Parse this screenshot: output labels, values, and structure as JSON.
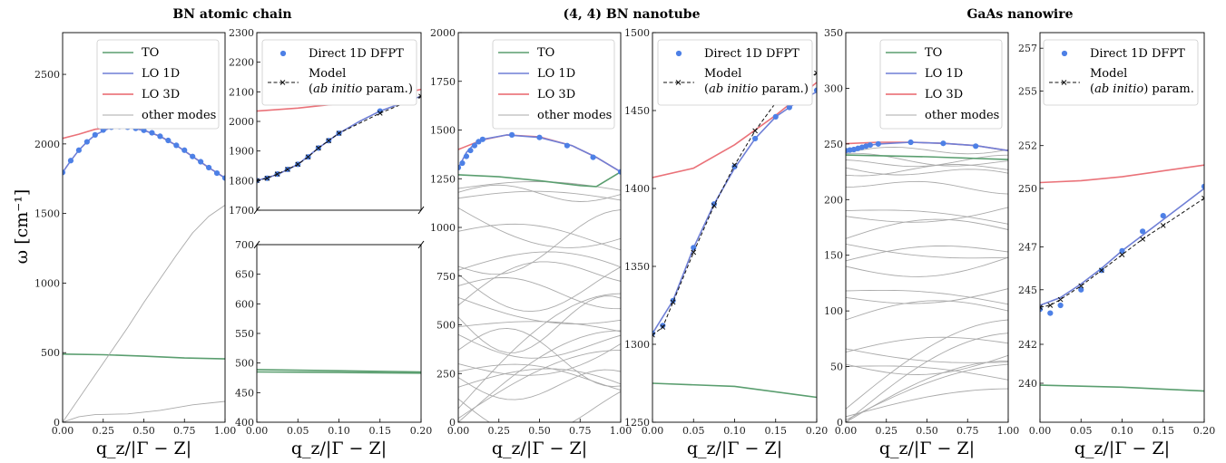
{
  "figure": {
    "titles": [
      "BN atomic chain",
      "(4, 4) BN nanotube",
      "GaAs nanowire"
    ],
    "ylabel": "ω [cm⁻¹]",
    "xlabel": "q_z/|Γ − Z|"
  },
  "legend_dispersion": {
    "to": "TO",
    "lo1d": "LO 1D",
    "lo3d": "LO 3D",
    "other": "other modes"
  },
  "legend_zoom": {
    "dfpt": "Direct 1D DFPT",
    "model1": "Model",
    "model2a": "(",
    "model2b": "ab initio",
    "model2c": " param.)"
  },
  "legend_zoom_gaas": {
    "model2a": "(",
    "model2b": "ab initio",
    "model2c": ") param."
  },
  "colors": {
    "to": "#5a9e6f",
    "lo1d": "#6f7fd6",
    "lo3d": "#e8636a",
    "other": "#aaaaaa",
    "dfpt": "#4d80e6",
    "model": "#111111"
  },
  "chart_data": [
    {
      "type": "line",
      "panel": "BN chain full dispersion",
      "title": "BN atomic chain",
      "ylabel": "ω [cm⁻¹]",
      "xlabel": "q_z/|Γ − Z|",
      "xlim": [
        0,
        1
      ],
      "ylim": [
        0,
        2800
      ],
      "x_ticks": [
        "0.00",
        "0.25",
        "0.50",
        "0.75",
        "1.00"
      ],
      "y_ticks": [
        "0",
        "500",
        "1000",
        "1500",
        "2000",
        "2500"
      ],
      "series": [
        {
          "name": "LO 3D",
          "x": [
            0,
            0.1,
            0.2,
            0.3,
            0.4,
            0.5,
            0.6,
            0.7,
            0.8,
            0.9,
            1.0
          ],
          "y": [
            2040,
            2070,
            2105,
            2120,
            2120,
            2098,
            2055,
            1990,
            1910,
            1830,
            1755
          ]
        },
        {
          "name": "LO 1D",
          "x": [
            0,
            0.05,
            0.1,
            0.15,
            0.2,
            0.3,
            0.4,
            0.5,
            0.6,
            0.7,
            0.8,
            0.9,
            1.0
          ],
          "y": [
            1795,
            1880,
            1955,
            2015,
            2065,
            2120,
            2120,
            2098,
            2055,
            1990,
            1910,
            1830,
            1755
          ]
        },
        {
          "name": "TO",
          "x": [
            0,
            0.25,
            0.5,
            0.75,
            1.0
          ],
          "y": [
            490,
            485,
            475,
            462,
            455
          ]
        },
        {
          "name": "other modes",
          "x": [
            0,
            0.1,
            0.2,
            0.3,
            0.4,
            0.5,
            0.6,
            0.7,
            0.8,
            0.9,
            1.0
          ],
          "y": [
            0,
            170,
            340,
            510,
            680,
            860,
            1030,
            1200,
            1360,
            1480,
            1560
          ]
        },
        {
          "name": "other modes",
          "x": [
            0,
            0.1,
            0.2,
            0.4,
            0.6,
            0.8,
            1.0
          ],
          "y": [
            0,
            40,
            55,
            60,
            85,
            125,
            150
          ]
        },
        {
          "name": "Direct 1D DFPT",
          "x": [
            0,
            0.05,
            0.1,
            0.15,
            0.2,
            0.25,
            0.3,
            0.35,
            0.4,
            0.45,
            0.5,
            0.55,
            0.6,
            0.65,
            0.7,
            0.75,
            0.8,
            0.85,
            0.9,
            0.95,
            1.0
          ],
          "y": [
            1795,
            1880,
            1955,
            2015,
            2065,
            2100,
            2120,
            2125,
            2120,
            2112,
            2098,
            2080,
            2055,
            2025,
            1990,
            1955,
            1910,
            1872,
            1830,
            1790,
            1755
          ]
        }
      ]
    },
    {
      "type": "line",
      "panel": "BN chain zoom (broken axis)",
      "xlim": [
        0,
        0.2
      ],
      "ylim_upper": [
        1700,
        2300
      ],
      "ylim_lower": [
        400,
        700
      ],
      "x_ticks": [
        "0.00",
        "0.05",
        "0.10",
        "0.15",
        "0.20"
      ],
      "y_ticks_upper": [
        "1700",
        "1800",
        "1900",
        "2000",
        "2100",
        "2200",
        "2300"
      ],
      "y_ticks_lower": [
        "400",
        "450",
        "500",
        "550",
        "600",
        "650",
        "700"
      ],
      "series": [
        {
          "name": "LO 3D",
          "x": [
            0,
            0.05,
            0.1,
            0.15,
            0.2
          ],
          "y": [
            2035,
            2045,
            2060,
            2080,
            2108
          ]
        },
        {
          "name": "LO 1D",
          "x": [
            0,
            0.025,
            0.05,
            0.075,
            0.1,
            0.125,
            0.15,
            0.175,
            0.2
          ],
          "y": [
            1800,
            1820,
            1855,
            1910,
            1960,
            2000,
            2035,
            2060,
            2085
          ]
        },
        {
          "name": "TO",
          "x": [
            0,
            0.1,
            0.2
          ],
          "y": [
            489,
            487,
            485
          ]
        },
        {
          "name": "TO",
          "x": [
            0,
            0.1,
            0.2
          ],
          "y": [
            485,
            484,
            483
          ]
        },
        {
          "name": "Direct 1D DFPT",
          "x": [
            0,
            0.0125,
            0.025,
            0.0375,
            0.05,
            0.0625,
            0.075,
            0.0875,
            0.1,
            0.15
          ],
          "y": [
            1800,
            1808,
            1822,
            1838,
            1855,
            1880,
            1910,
            1935,
            1960,
            2035
          ]
        },
        {
          "name": "Model (ab initio param.)",
          "x": [
            0,
            0.0125,
            0.025,
            0.0375,
            0.05,
            0.0625,
            0.075,
            0.0875,
            0.1,
            0.15,
            0.2
          ],
          "y": [
            1800,
            1808,
            1822,
            1838,
            1855,
            1880,
            1910,
            1935,
            1960,
            2028,
            2085
          ]
        }
      ]
    },
    {
      "type": "line",
      "panel": "(4,4) BN nanotube full dispersion",
      "title": "(4, 4) BN nanotube",
      "xlim": [
        0,
        1
      ],
      "ylim": [
        0,
        2000
      ],
      "x_ticks": [
        "0.00",
        "0.25",
        "0.50",
        "0.75",
        "1.00"
      ],
      "y_ticks": [
        "0",
        "250",
        "500",
        "750",
        "1000",
        "1250",
        "1500",
        "1750",
        "2000"
      ],
      "series": [
        {
          "name": "LO 3D",
          "x": [
            0,
            0.15,
            0.3,
            0.5,
            0.7,
            0.85,
            1.0
          ],
          "y": [
            1400,
            1450,
            1475,
            1465,
            1420,
            1360,
            1285
          ]
        },
        {
          "name": "LO 1D",
          "x": [
            0,
            0.05,
            0.1,
            0.15,
            0.3,
            0.5,
            0.7,
            0.85,
            1.0
          ],
          "y": [
            1305,
            1385,
            1430,
            1452,
            1475,
            1462,
            1420,
            1360,
            1285
          ]
        },
        {
          "name": "TO",
          "x": [
            0,
            0.25,
            0.5,
            0.75,
            0.85,
            1.0
          ],
          "y": [
            1270,
            1260,
            1240,
            1215,
            1210,
            1285
          ]
        },
        {
          "name": "Direct 1D DFPT",
          "x": [
            0,
            0.025,
            0.05,
            0.075,
            0.1,
            0.125,
            0.15,
            0.33,
            0.5,
            0.67,
            0.83,
            1.0
          ],
          "y": [
            1307,
            1330,
            1365,
            1395,
            1420,
            1440,
            1452,
            1475,
            1462,
            1420,
            1360,
            1285
          ]
        }
      ]
    },
    {
      "type": "line",
      "panel": "(4,4) BN nanotube zoom",
      "xlim": [
        0,
        0.2
      ],
      "ylim": [
        1250,
        1500
      ],
      "x_ticks": [
        "0.00",
        "0.05",
        "0.10",
        "0.15",
        "0.20"
      ],
      "y_ticks": [
        "1250",
        "1300",
        "1350",
        "1400",
        "1450",
        "1500"
      ],
      "series": [
        {
          "name": "LO 3D",
          "x": [
            0,
            0.05,
            0.1,
            0.15,
            0.2
          ],
          "y": [
            1407,
            1413,
            1428,
            1447,
            1468
          ]
        },
        {
          "name": "LO 1D",
          "x": [
            0,
            0.025,
            0.05,
            0.075,
            0.1,
            0.125,
            0.15,
            0.175,
            0.2
          ],
          "y": [
            1307,
            1328,
            1362,
            1390,
            1413,
            1432,
            1446,
            1455,
            1462
          ]
        },
        {
          "name": "TO",
          "x": [
            0,
            0.1,
            0.2
          ],
          "y": [
            1275,
            1273,
            1266
          ]
        },
        {
          "name": "Direct 1D DFPT",
          "x": [
            0,
            0.0125,
            0.025,
            0.05,
            0.075,
            0.1,
            0.125,
            0.15,
            0.1667,
            0.2
          ],
          "y": [
            1307,
            1312,
            1328,
            1362,
            1390,
            1414,
            1432,
            1446,
            1452,
            1463
          ]
        },
        {
          "name": "Model (ab initio param.)",
          "x": [
            0,
            0.0125,
            0.025,
            0.05,
            0.075,
            0.1,
            0.125,
            0.15,
            0.175,
            0.2
          ],
          "y": [
            1306,
            1311,
            1327,
            1359,
            1389,
            1415,
            1437,
            1455,
            1466,
            1474
          ]
        }
      ]
    },
    {
      "type": "line",
      "panel": "GaAs nanowire full dispersion",
      "title": "GaAs nanowire",
      "xlim": [
        0,
        1
      ],
      "ylim": [
        0,
        350
      ],
      "x_ticks": [
        "0.00",
        "0.25",
        "0.50",
        "0.75",
        "1.00"
      ],
      "y_ticks": [
        "0",
        "50",
        "100",
        "150",
        "200",
        "250",
        "300",
        "350"
      ],
      "series": [
        {
          "name": "LO 3D",
          "x": [
            0,
            0.2,
            0.4,
            0.6,
            0.8,
            1.0
          ],
          "y": [
            250.2,
            251.5,
            251.5,
            250.5,
            248.5,
            244
          ]
        },
        {
          "name": "LO 1D",
          "x": [
            0,
            0.05,
            0.1,
            0.15,
            0.2,
            0.4,
            0.6,
            0.8,
            1.0
          ],
          "y": [
            244,
            245,
            247,
            249,
            250,
            251.5,
            250.5,
            248.5,
            244
          ]
        },
        {
          "name": "TO",
          "x": [
            0,
            0.5,
            1.0
          ],
          "y": [
            240,
            238.5,
            236
          ]
        },
        {
          "name": "Direct 1D DFPT",
          "x": [
            0,
            0.025,
            0.05,
            0.075,
            0.1,
            0.125,
            0.15,
            0.2,
            0.4,
            0.6,
            0.8
          ],
          "y": [
            244,
            244.5,
            245,
            246,
            247,
            248,
            249,
            250,
            251.5,
            250.5,
            248
          ]
        }
      ]
    },
    {
      "type": "line",
      "panel": "GaAs nanowire zoom",
      "xlim": [
        0,
        0.2
      ],
      "ylim": [
        238,
        258
      ],
      "x_ticks": [
        "0.00",
        "0.05",
        "0.10",
        "0.15",
        "0.20"
      ],
      "y_ticks": [
        "240",
        "242",
        "245",
        "247",
        "250",
        "252",
        "255",
        "257"
      ],
      "series": [
        {
          "name": "LO 3D",
          "x": [
            0,
            0.05,
            0.1,
            0.15,
            0.2
          ],
          "y": [
            250.3,
            250.4,
            250.6,
            250.9,
            251.2
          ]
        },
        {
          "name": "LO 1D",
          "x": [
            0,
            0.025,
            0.05,
            0.075,
            0.1,
            0.125,
            0.15,
            0.175,
            0.2
          ],
          "y": [
            244.0,
            244.4,
            245.1,
            245.9,
            246.8,
            247.6,
            248.4,
            249.2,
            250.0
          ]
        },
        {
          "name": "TO",
          "x": [
            0,
            0.1,
            0.2
          ],
          "y": [
            239.9,
            239.8,
            239.6
          ]
        },
        {
          "name": "Direct 1D DFPT",
          "x": [
            0,
            0.0125,
            0.025,
            0.05,
            0.075,
            0.1,
            0.125,
            0.15,
            0.2
          ],
          "y": [
            243.8,
            243.6,
            244.0,
            244.8,
            245.8,
            246.8,
            247.8,
            248.6,
            250.1
          ]
        },
        {
          "name": "Model (ab initio param.)",
          "x": [
            0,
            0.0125,
            0.025,
            0.05,
            0.075,
            0.1,
            0.125,
            0.15,
            0.2
          ],
          "y": [
            243.9,
            244.0,
            244.3,
            245.0,
            245.8,
            246.6,
            247.4,
            248.1,
            249.5
          ]
        }
      ]
    }
  ]
}
